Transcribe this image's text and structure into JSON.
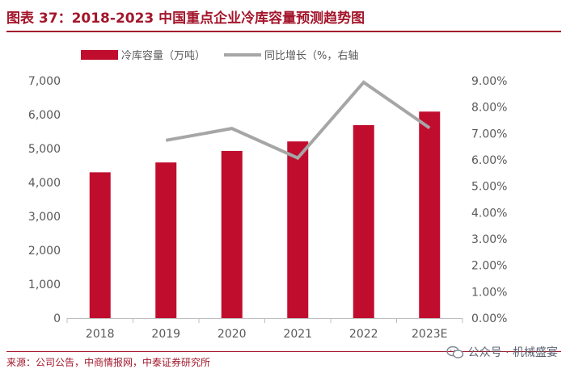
{
  "title": "图表 37：2018-2023 中国重点企业冷库容量预测趋势图",
  "source": "来源：公司公告，中商情报网，中泰证券研究所",
  "watermark": "公众号 · 机械盛宴",
  "colors": {
    "accent": "#a3162b",
    "bar": "#c00d2e",
    "line": "#a6a6a6",
    "axis_text": "#595959"
  },
  "chart_data": {
    "type": "bar",
    "title": "",
    "categories": [
      "2018",
      "2019",
      "2020",
      "2021",
      "2022",
      "2023E"
    ],
    "series": [
      {
        "name": "冷库容量（万吨）",
        "type": "bar",
        "axis": "left",
        "values": [
          4300,
          4590,
          4930,
          5210,
          5690,
          6090
        ]
      },
      {
        "name": "同比增长（%，右轴）",
        "type": "line",
        "axis": "right",
        "values": [
          null,
          6.74,
          7.19,
          6.07,
          8.94,
          7.21
        ]
      }
    ],
    "y_left": {
      "range": [
        0,
        7000
      ],
      "ticks": [
        "0",
        "1,000",
        "2,000",
        "3,000",
        "4,000",
        "5,000",
        "6,000",
        "7,000"
      ]
    },
    "y_right": {
      "range": [
        0,
        9
      ],
      "ticks": [
        "0.00%",
        "1.00%",
        "2.00%",
        "3.00%",
        "4.00%",
        "5.00%",
        "6.00%",
        "7.00%",
        "8.00%",
        "9.00%"
      ]
    },
    "legend": [
      {
        "label": "冷库容量（万吨）",
        "kind": "bar"
      },
      {
        "label": "同比增长（%，右轴",
        "kind": "line"
      }
    ],
    "legend_position": "top",
    "grid": false
  }
}
